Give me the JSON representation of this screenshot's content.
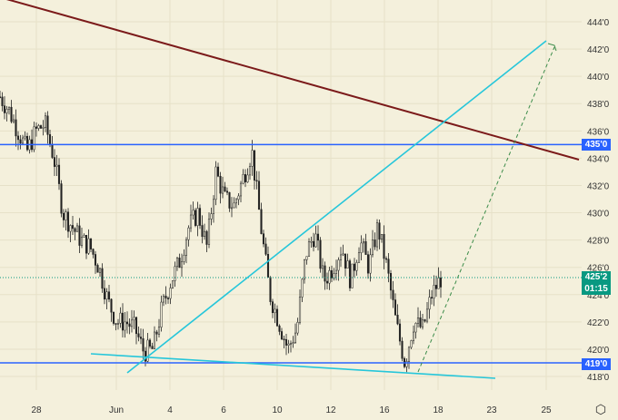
{
  "chart_data": {
    "type": "candlestick",
    "ylim": [
      417,
      445.5
    ],
    "y_ticks": [
      "444'0",
      "442'0",
      "440'0",
      "438'0",
      "436'0",
      "434'0",
      "432'0",
      "430'0",
      "428'0",
      "426'0",
      "424'0",
      "422'0",
      "420'0",
      "418'0"
    ],
    "y_tick_values": [
      444,
      442,
      440,
      438,
      436,
      434,
      432,
      430,
      428,
      426,
      424,
      422,
      420,
      418
    ],
    "x_ticks": [
      "28",
      "Jun",
      "4",
      "6",
      "10",
      "12",
      "16",
      "18",
      "23",
      "25"
    ],
    "price_path": [
      438.5,
      437.5,
      436,
      434.5,
      436,
      436.5,
      434,
      430,
      429,
      428,
      427.5,
      426,
      423.5,
      422,
      422,
      421.5,
      419.8,
      420,
      423,
      425,
      426.5,
      429,
      430,
      427.5,
      433,
      431,
      430.5,
      432.5,
      434.5,
      429,
      424,
      422,
      420,
      421.5,
      427,
      428.5,
      425,
      426,
      427.5,
      425,
      428,
      426,
      429,
      426,
      422,
      419,
      422,
      421.5,
      424,
      425.2
    ],
    "horizontal_levels": [
      {
        "price": 435,
        "label": "435'0",
        "color": "#2962ff"
      },
      {
        "price": 419,
        "label": "419'0",
        "color": "#2962ff"
      }
    ],
    "last_price": {
      "price": 425.25,
      "label": "425'2",
      "countdown": "01:15",
      "color": "#089981"
    },
    "trendline_colors": {
      "resistance": "#7b1a1a",
      "channel": "#26c6da",
      "projection": "#3c8c4a"
    },
    "grid": true
  },
  "footer": {
    "settings_icon": "gear-icon"
  }
}
